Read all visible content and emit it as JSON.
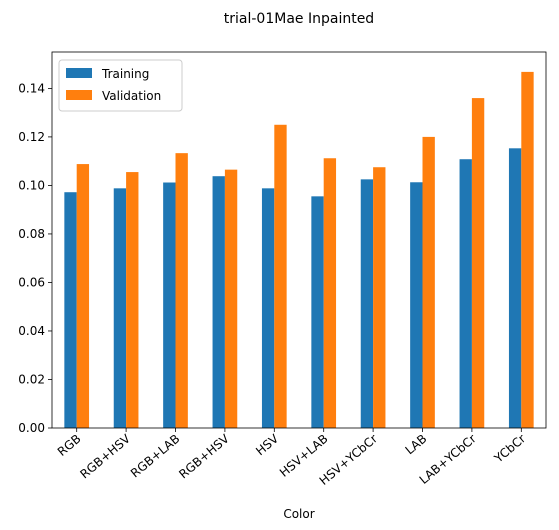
{
  "chart_data": {
    "type": "bar",
    "title": "trial-01Mae Inpainted",
    "xlabel": "Color",
    "ylabel": "",
    "categories": [
      "RGB",
      "RGB+HSV",
      "RGB+LAB",
      "RGB+HSV",
      "HSV",
      "HSV+LAB",
      "HSV+YCbCr",
      "LAB",
      "LAB+YCbCr",
      "YCbCr"
    ],
    "series": [
      {
        "name": "Training",
        "color": "#1f77b4",
        "values": [
          0.0972,
          0.0988,
          0.1012,
          0.1038,
          0.0988,
          0.0955,
          0.1025,
          0.1013,
          0.1108,
          0.1153
        ]
      },
      {
        "name": "Validation",
        "color": "#ff7f0e",
        "values": [
          0.1088,
          0.1055,
          0.1133,
          0.1065,
          0.125,
          0.1112,
          0.1075,
          0.12,
          0.136,
          0.1468
        ]
      }
    ],
    "ylim": [
      0,
      0.155
    ],
    "yticks": [
      "0.00",
      "0.02",
      "0.04",
      "0.06",
      "0.08",
      "0.10",
      "0.12",
      "0.14"
    ],
    "grid": false,
    "legend": "top-left"
  }
}
